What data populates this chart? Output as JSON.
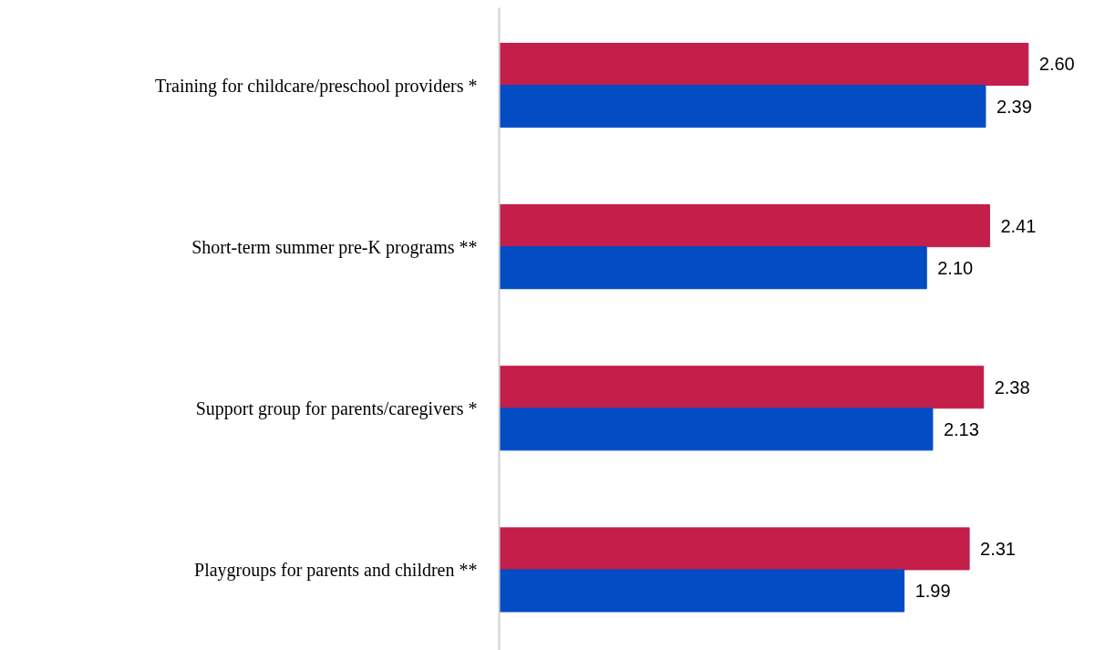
{
  "chart_data": {
    "type": "bar",
    "orientation": "horizontal",
    "categories": [
      "Training for childcare/preschool providers *",
      "Short-term summer pre-K programs **",
      "Support group for parents/caregivers *",
      "Playgroups for parents and children **"
    ],
    "series": [
      {
        "color": "#c41e4a",
        "values": [
          2.6,
          2.41,
          2.38,
          2.31
        ],
        "value_labels": [
          "2.60",
          "2.41",
          "2.38",
          "2.31"
        ]
      },
      {
        "color": "#034cc4",
        "values": [
          2.39,
          2.1,
          2.13,
          1.99
        ],
        "value_labels": [
          "2.39",
          "2.10",
          "2.13",
          "1.99"
        ]
      }
    ],
    "grid": false,
    "tick_labels": "y"
  }
}
